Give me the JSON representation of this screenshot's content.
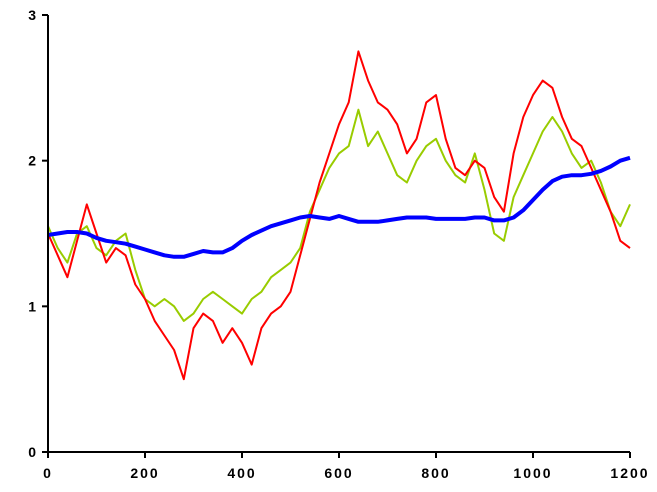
{
  "chart_data": {
    "type": "line",
    "title": "",
    "xlabel": "",
    "ylabel": "",
    "xlim": [
      0,
      1200
    ],
    "ylim": [
      0,
      3
    ],
    "grid": false,
    "legend": "none",
    "x_ticks": [
      {
        "value": 0,
        "label": "0"
      },
      {
        "value": 200,
        "label": "200"
      },
      {
        "value": 400,
        "label": "400"
      },
      {
        "value": 600,
        "label": "600"
      },
      {
        "value": 800,
        "label": "800"
      },
      {
        "value": 1000,
        "label": "1000"
      },
      {
        "value": 1200,
        "label": "1200"
      }
    ],
    "y_ticks": [
      {
        "value": 0,
        "label": "0"
      },
      {
        "value": 1,
        "label": "1"
      },
      {
        "value": 2,
        "label": "2"
      },
      {
        "value": 3,
        "label": "3"
      }
    ],
    "series": [
      {
        "color": "#99cc00",
        "points": [
          [
            0,
            1.55
          ],
          [
            20,
            1.4
          ],
          [
            40,
            1.3
          ],
          [
            60,
            1.5
          ],
          [
            80,
            1.55
          ],
          [
            100,
            1.4
          ],
          [
            120,
            1.35
          ],
          [
            140,
            1.45
          ],
          [
            160,
            1.5
          ],
          [
            180,
            1.25
          ],
          [
            200,
            1.05
          ],
          [
            220,
            1.0
          ],
          [
            240,
            1.05
          ],
          [
            260,
            1.0
          ],
          [
            280,
            0.9
          ],
          [
            300,
            0.95
          ],
          [
            320,
            1.05
          ],
          [
            340,
            1.1
          ],
          [
            360,
            1.05
          ],
          [
            380,
            1.0
          ],
          [
            400,
            0.95
          ],
          [
            420,
            1.05
          ],
          [
            440,
            1.1
          ],
          [
            460,
            1.2
          ],
          [
            480,
            1.25
          ],
          [
            500,
            1.3
          ],
          [
            520,
            1.4
          ],
          [
            540,
            1.65
          ],
          [
            560,
            1.8
          ],
          [
            580,
            1.95
          ],
          [
            600,
            2.05
          ],
          [
            620,
            2.1
          ],
          [
            640,
            2.35
          ],
          [
            660,
            2.1
          ],
          [
            680,
            2.2
          ],
          [
            700,
            2.05
          ],
          [
            720,
            1.9
          ],
          [
            740,
            1.85
          ],
          [
            760,
            2.0
          ],
          [
            780,
            2.1
          ],
          [
            800,
            2.15
          ],
          [
            820,
            2.0
          ],
          [
            840,
            1.9
          ],
          [
            860,
            1.85
          ],
          [
            880,
            2.05
          ],
          [
            900,
            1.8
          ],
          [
            920,
            1.5
          ],
          [
            940,
            1.45
          ],
          [
            960,
            1.75
          ],
          [
            980,
            1.9
          ],
          [
            1000,
            2.05
          ],
          [
            1020,
            2.2
          ],
          [
            1040,
            2.3
          ],
          [
            1060,
            2.2
          ],
          [
            1080,
            2.05
          ],
          [
            1100,
            1.95
          ],
          [
            1120,
            2.0
          ],
          [
            1140,
            1.85
          ],
          [
            1160,
            1.65
          ],
          [
            1180,
            1.55
          ],
          [
            1200,
            1.7
          ]
        ]
      },
      {
        "color": "#ff0000",
        "points": [
          [
            0,
            1.5
          ],
          [
            20,
            1.35
          ],
          [
            40,
            1.2
          ],
          [
            60,
            1.45
          ],
          [
            80,
            1.7
          ],
          [
            100,
            1.5
          ],
          [
            120,
            1.3
          ],
          [
            140,
            1.4
          ],
          [
            160,
            1.35
          ],
          [
            180,
            1.15
          ],
          [
            200,
            1.05
          ],
          [
            220,
            0.9
          ],
          [
            240,
            0.8
          ],
          [
            260,
            0.7
          ],
          [
            280,
            0.5
          ],
          [
            300,
            0.85
          ],
          [
            320,
            0.95
          ],
          [
            340,
            0.9
          ],
          [
            360,
            0.75
          ],
          [
            380,
            0.85
          ],
          [
            400,
            0.75
          ],
          [
            420,
            0.6
          ],
          [
            440,
            0.85
          ],
          [
            460,
            0.95
          ],
          [
            480,
            1.0
          ],
          [
            500,
            1.1
          ],
          [
            520,
            1.35
          ],
          [
            540,
            1.6
          ],
          [
            560,
            1.85
          ],
          [
            580,
            2.05
          ],
          [
            600,
            2.25
          ],
          [
            620,
            2.4
          ],
          [
            640,
            2.75
          ],
          [
            660,
            2.55
          ],
          [
            680,
            2.4
          ],
          [
            700,
            2.35
          ],
          [
            720,
            2.25
          ],
          [
            740,
            2.05
          ],
          [
            760,
            2.15
          ],
          [
            780,
            2.4
          ],
          [
            800,
            2.45
          ],
          [
            820,
            2.15
          ],
          [
            840,
            1.95
          ],
          [
            860,
            1.9
          ],
          [
            880,
            2.0
          ],
          [
            900,
            1.95
          ],
          [
            920,
            1.75
          ],
          [
            940,
            1.65
          ],
          [
            960,
            2.05
          ],
          [
            980,
            2.3
          ],
          [
            1000,
            2.45
          ],
          [
            1020,
            2.55
          ],
          [
            1040,
            2.5
          ],
          [
            1060,
            2.3
          ],
          [
            1080,
            2.15
          ],
          [
            1100,
            2.1
          ],
          [
            1120,
            1.95
          ],
          [
            1140,
            1.8
          ],
          [
            1160,
            1.65
          ],
          [
            1180,
            1.45
          ],
          [
            1200,
            1.4
          ]
        ]
      },
      {
        "color": "#0000ff",
        "points": [
          [
            0,
            1.49
          ],
          [
            20,
            1.5
          ],
          [
            40,
            1.51
          ],
          [
            60,
            1.51
          ],
          [
            80,
            1.5
          ],
          [
            100,
            1.47
          ],
          [
            120,
            1.45
          ],
          [
            140,
            1.44
          ],
          [
            160,
            1.43
          ],
          [
            180,
            1.41
          ],
          [
            200,
            1.39
          ],
          [
            220,
            1.37
          ],
          [
            240,
            1.35
          ],
          [
            260,
            1.34
          ],
          [
            280,
            1.34
          ],
          [
            300,
            1.36
          ],
          [
            320,
            1.38
          ],
          [
            340,
            1.37
          ],
          [
            360,
            1.37
          ],
          [
            380,
            1.4
          ],
          [
            400,
            1.45
          ],
          [
            420,
            1.49
          ],
          [
            440,
            1.52
          ],
          [
            460,
            1.55
          ],
          [
            480,
            1.57
          ],
          [
            500,
            1.59
          ],
          [
            520,
            1.61
          ],
          [
            540,
            1.62
          ],
          [
            560,
            1.61
          ],
          [
            580,
            1.6
          ],
          [
            600,
            1.62
          ],
          [
            620,
            1.6
          ],
          [
            640,
            1.58
          ],
          [
            660,
            1.58
          ],
          [
            680,
            1.58
          ],
          [
            700,
            1.59
          ],
          [
            720,
            1.6
          ],
          [
            740,
            1.61
          ],
          [
            760,
            1.61
          ],
          [
            780,
            1.61
          ],
          [
            800,
            1.6
          ],
          [
            820,
            1.6
          ],
          [
            840,
            1.6
          ],
          [
            860,
            1.6
          ],
          [
            880,
            1.61
          ],
          [
            900,
            1.61
          ],
          [
            920,
            1.59
          ],
          [
            940,
            1.59
          ],
          [
            960,
            1.61
          ],
          [
            980,
            1.66
          ],
          [
            1000,
            1.73
          ],
          [
            1020,
            1.8
          ],
          [
            1040,
            1.86
          ],
          [
            1060,
            1.89
          ],
          [
            1080,
            1.9
          ],
          [
            1100,
            1.9
          ],
          [
            1120,
            1.91
          ],
          [
            1140,
            1.93
          ],
          [
            1160,
            1.96
          ],
          [
            1180,
            2.0
          ],
          [
            1200,
            2.02
          ]
        ]
      }
    ]
  }
}
